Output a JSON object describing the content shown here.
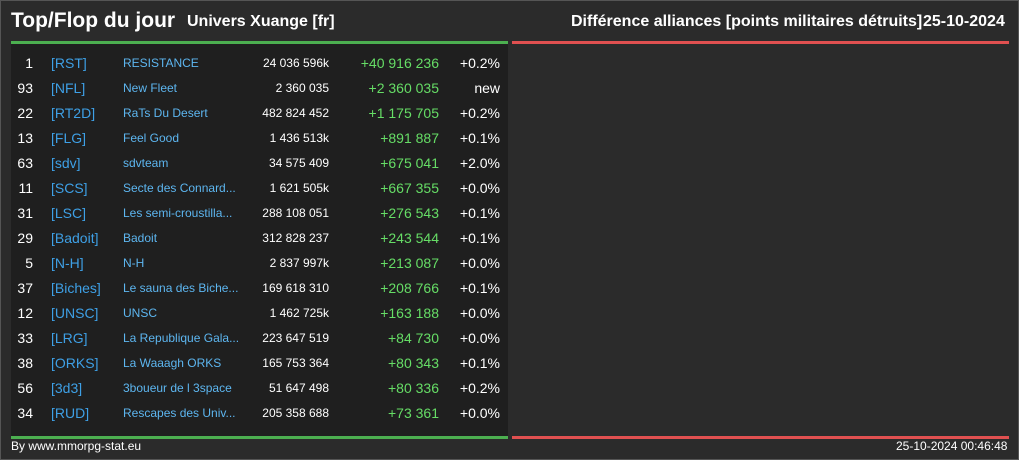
{
  "header": {
    "title": "Top/Flop du jour",
    "subtitle": "Univers Xuange [fr]",
    "right_title": "Différence alliances [points militaires détruits]",
    "date": "25-10-2024"
  },
  "colors": {
    "background": "#2b2b2b",
    "panel": "#1f1f1f",
    "top_accent": "#4caf50",
    "flop_accent": "#e05050",
    "tag": "#3ea0e6",
    "positive": "#66dd66"
  },
  "top_rows": [
    {
      "rank": "1",
      "tag": "[RST]",
      "name": "RESISTANCE",
      "points": "24 036 596k",
      "diff": "+40 916 236",
      "pct": "+0.2%"
    },
    {
      "rank": "93",
      "tag": "[NFL]",
      "name": "New Fleet",
      "points": "2 360 035",
      "diff": "+2 360 035",
      "pct": "new"
    },
    {
      "rank": "22",
      "tag": "[RT2D]",
      "name": "RaTs Du Desert",
      "points": "482 824 452",
      "diff": "+1 175 705",
      "pct": "+0.2%"
    },
    {
      "rank": "13",
      "tag": "[FLG]",
      "name": "Feel Good",
      "points": "1 436 513k",
      "diff": "+891 887",
      "pct": "+0.1%"
    },
    {
      "rank": "63",
      "tag": "[sdv]",
      "name": "sdvteam",
      "points": "34 575 409",
      "diff": "+675 041",
      "pct": "+2.0%"
    },
    {
      "rank": "11",
      "tag": "[SCS]",
      "name": "Secte des Connard...",
      "points": "1 621 505k",
      "diff": "+667 355",
      "pct": "+0.0%"
    },
    {
      "rank": "31",
      "tag": "[LSC]",
      "name": "Les semi-croustilla...",
      "points": "288 108 051",
      "diff": "+276 543",
      "pct": "+0.1%"
    },
    {
      "rank": "29",
      "tag": "[Badoit]",
      "name": "Badoit",
      "points": "312 828 237",
      "diff": "+243 544",
      "pct": "+0.1%"
    },
    {
      "rank": "5",
      "tag": "[N-H]",
      "name": "N-H",
      "points": "2 837 997k",
      "diff": "+213 087",
      "pct": "+0.0%"
    },
    {
      "rank": "37",
      "tag": "[Biches]",
      "name": "Le sauna des Biche...",
      "points": "169 618 310",
      "diff": "+208 766",
      "pct": "+0.1%"
    },
    {
      "rank": "12",
      "tag": "[UNSC]",
      "name": "UNSC",
      "points": "1 462 725k",
      "diff": "+163 188",
      "pct": "+0.0%"
    },
    {
      "rank": "33",
      "tag": "[LRG]",
      "name": "La Republique Gala...",
      "points": "223 647 519",
      "diff": "+84 730",
      "pct": "+0.0%"
    },
    {
      "rank": "38",
      "tag": "[ORKS]",
      "name": "La Waaagh ORKS",
      "points": "165 753 364",
      "diff": "+80 343",
      "pct": "+0.1%"
    },
    {
      "rank": "56",
      "tag": "[3d3]",
      "name": "3boueur de l 3space",
      "points": "51 647 498",
      "diff": "+80 336",
      "pct": "+0.2%"
    },
    {
      "rank": "34",
      "tag": "[RUD]",
      "name": "Rescapes des Univ...",
      "points": "205 358 688",
      "diff": "+73 361",
      "pct": "+0.0%"
    }
  ],
  "footer": {
    "left": "By www.mmorpg-stat.eu",
    "right": "25-10-2024 00:46:48"
  }
}
